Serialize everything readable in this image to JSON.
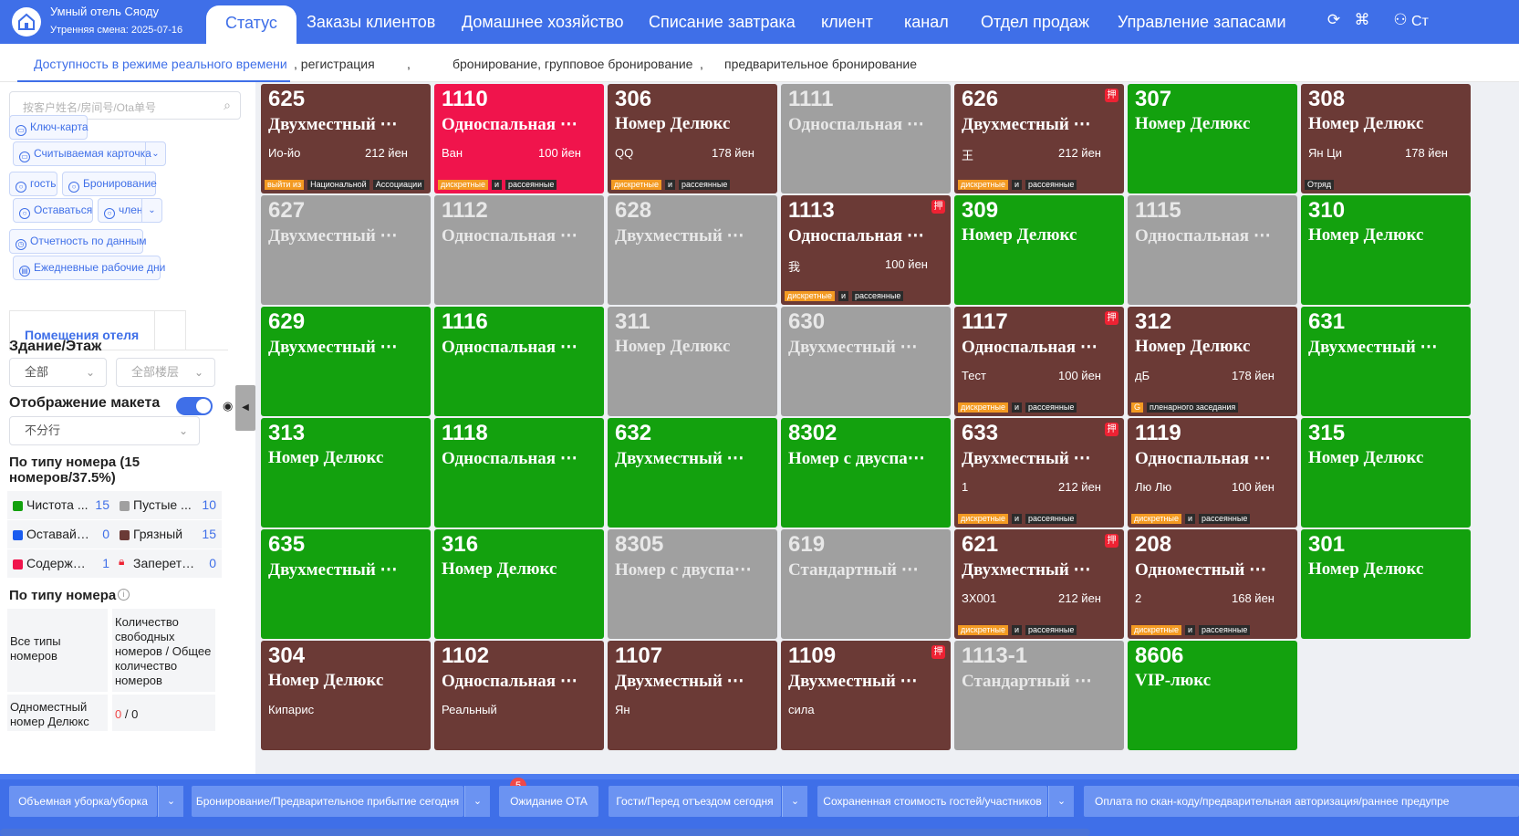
{
  "header": {
    "hotel_name": "Умный отель Сяоду",
    "shift": "Утренняя смена: 2025-07-16",
    "tabs": [
      "Статус",
      "Заказы клиентов",
      "Домашнее хозяйство",
      "Списание завтрака",
      "клиент",
      "канал",
      "Отдел продаж",
      "Управление запасами"
    ],
    "user_label": "Ст"
  },
  "subtabs": [
    "Доступность в режиме реального времени",
    ", регистрация",
    ",",
    "бронирование, групповое бронирование",
    ",",
    "предварительное бронирование"
  ],
  "sidebar": {
    "search_placeholder": "按客户姓名/房间号/Ota单号",
    "chips": [
      "Ключ-карта",
      "Считываемая карточка",
      "гость",
      "Бронирование",
      "Оставаться",
      "член",
      "Отчетность по данным",
      "Ежедневные рабочие дни"
    ],
    "hotel_tab": "Помещения отеля",
    "building_label": "Здание/Этаж",
    "building_value": "全部",
    "floor_value": "全部楼层",
    "layout_label": "Отображение макета",
    "layout_value": "不分行",
    "by_type_label": "По типу номера (15 номеров/37.5%)",
    "stats": [
      {
        "name": "Чистота ...",
        "count": "15",
        "color": "#13a10e"
      },
      {
        "name": "Пустые ...",
        "count": "10",
        "color": "#a0a0a0"
      },
      {
        "name": "Оставайт...",
        "count": "0",
        "color": "#1a5cf0"
      },
      {
        "name": "Грязный",
        "count": "15",
        "color": "#6b3a36"
      },
      {
        "name": "Содержа...",
        "count": "1",
        "color": "#f0144c"
      },
      {
        "name": "Запереть ...",
        "count": "0",
        "color": "#e23"
      }
    ],
    "by_type_label2": "По типу номера",
    "table_h1": "Все типы номеров",
    "table_h2": "Количество свободных номеров / Общее количество номеров",
    "table_r1": "Одноместный номер Делюкс",
    "table_r1_free": "0",
    "table_r1_total": " / 0"
  },
  "rooms": [
    {
      "num": "625",
      "type": "Двухместный ⋯",
      "guest": "Ио-йо",
      "price": "212 йен",
      "color": "#6b3a36",
      "tags": [
        [
          "выйти из",
          1
        ],
        [
          "Национальной",
          0
        ],
        [
          "Ассоциации",
          0
        ]
      ]
    },
    {
      "num": "1110",
      "type": "Односпальная ⋯",
      "guest": "Ван",
      "price": "100 йен",
      "color": "#f0144c",
      "tags": [
        [
          "дискретные",
          1
        ],
        [
          "и",
          0
        ],
        [
          "рассеянные",
          0
        ]
      ]
    },
    {
      "num": "306",
      "type": "Номер Делюкс",
      "guest": "QQ",
      "price": "178 йен",
      "color": "#6b3a36",
      "tags": [
        [
          "дискретные",
          1
        ],
        [
          "и",
          0
        ],
        [
          "рассеянные",
          0
        ]
      ]
    },
    {
      "num": "1111",
      "type": "Односпальная ⋯",
      "guest": "",
      "price": "",
      "color": "#a0a0a0",
      "tags": []
    },
    {
      "num": "626",
      "type": "Двухместный ⋯",
      "guest": "王",
      "price": "212 йен",
      "color": "#6b3a36",
      "tags": [
        [
          "дискретные",
          1
        ],
        [
          "и",
          0
        ],
        [
          "рассеянные",
          0
        ]
      ],
      "pledge": "押"
    },
    {
      "num": "307",
      "type": "Номер Делюкс",
      "guest": "",
      "price": "",
      "color": "#13a10e",
      "tags": []
    },
    {
      "num": "308",
      "type": "Номер Делюкс",
      "guest": "Ян Ци",
      "price": "178 йен",
      "color": "#6b3a36",
      "tags": [
        [
          "Отряд",
          0
        ]
      ]
    },
    {
      "num": "627",
      "type": "Двухместный ⋯",
      "guest": "",
      "price": "",
      "color": "#a0a0a0",
      "tags": []
    },
    {
      "num": "1112",
      "type": "Односпальная ⋯",
      "guest": "",
      "price": "",
      "color": "#a0a0a0",
      "tags": []
    },
    {
      "num": "628",
      "type": "Двухместный ⋯",
      "guest": "",
      "price": "",
      "color": "#a0a0a0",
      "tags": []
    },
    {
      "num": "1113",
      "type": "Односпальная ⋯",
      "guest": "我",
      "price": "100 йен",
      "color": "#6b3a36",
      "tags": [
        [
          "дискретные",
          1
        ],
        [
          "и",
          0
        ],
        [
          "рассеянные",
          0
        ]
      ],
      "pledge": "押"
    },
    {
      "num": "309",
      "type": "Номер Делюкс",
      "guest": "",
      "price": "",
      "color": "#13a10e",
      "tags": []
    },
    {
      "num": "1115",
      "type": "Односпальная ⋯",
      "guest": "",
      "price": "",
      "color": "#a0a0a0",
      "tags": []
    },
    {
      "num": "310",
      "type": "Номер Делюкс",
      "guest": "",
      "price": "",
      "color": "#13a10e",
      "tags": []
    },
    {
      "num": "629",
      "type": "Двухместный ⋯",
      "guest": "",
      "price": "",
      "color": "#13a10e",
      "tags": []
    },
    {
      "num": "1116",
      "type": "Односпальная ⋯",
      "guest": "",
      "price": "",
      "color": "#13a10e",
      "tags": []
    },
    {
      "num": "311",
      "type": "Номер Делюкс",
      "guest": "",
      "price": "",
      "color": "#a0a0a0",
      "tags": []
    },
    {
      "num": "630",
      "type": "Двухместный ⋯",
      "guest": "",
      "price": "",
      "color": "#a0a0a0",
      "tags": []
    },
    {
      "num": "1117",
      "type": "Односпальная ⋯",
      "guest": "Тест",
      "price": "100 йен",
      "color": "#6b3a36",
      "tags": [
        [
          "дискретные",
          1
        ],
        [
          "и",
          0
        ],
        [
          "рассеянные",
          0
        ]
      ],
      "pledge": "押"
    },
    {
      "num": "312",
      "type": "Номер Делюкс",
      "guest": "дБ",
      "price": "178 йен",
      "color": "#6b3a36",
      "tags": [
        [
          "G",
          1
        ],
        [
          "пленарного заседания",
          0
        ]
      ]
    },
    {
      "num": "631",
      "type": "Двухместный ⋯",
      "guest": "",
      "price": "",
      "color": "#13a10e",
      "tags": []
    },
    {
      "num": "313",
      "type": "Номер Делюкс",
      "guest": "",
      "price": "",
      "color": "#13a10e",
      "tags": []
    },
    {
      "num": "1118",
      "type": "Односпальная ⋯",
      "guest": "",
      "price": "",
      "color": "#13a10e",
      "tags": []
    },
    {
      "num": "632",
      "type": "Двухместный ⋯",
      "guest": "",
      "price": "",
      "color": "#13a10e",
      "tags": []
    },
    {
      "num": "8302",
      "type": "Номер с двуспа⋯",
      "guest": "",
      "price": "",
      "color": "#13a10e",
      "tags": []
    },
    {
      "num": "633",
      "type": "Двухместный ⋯",
      "guest": "1",
      "price": "212 йен",
      "color": "#6b3a36",
      "tags": [
        [
          "дискретные",
          1
        ],
        [
          "и",
          0
        ],
        [
          "рассеянные",
          0
        ]
      ],
      "pledge": "押"
    },
    {
      "num": "1119",
      "type": "Односпальная ⋯",
      "guest": "Лю Лю",
      "price": "100 йен",
      "color": "#6b3a36",
      "tags": [
        [
          "дискретные",
          1
        ],
        [
          "и",
          0
        ],
        [
          "рассеянные",
          0
        ]
      ]
    },
    {
      "num": "315",
      "type": "Номер Делюкс",
      "guest": "",
      "price": "",
      "color": "#13a10e",
      "tags": []
    },
    {
      "num": "635",
      "type": "Двухместный ⋯",
      "guest": "",
      "price": "",
      "color": "#13a10e",
      "tags": []
    },
    {
      "num": "316",
      "type": "Номер Делюкс",
      "guest": "",
      "price": "",
      "color": "#13a10e",
      "tags": []
    },
    {
      "num": "8305",
      "type": "Номер с двуспа⋯",
      "guest": "",
      "price": "",
      "color": "#a0a0a0",
      "tags": []
    },
    {
      "num": "619",
      "type": "Стандартный ⋯",
      "guest": "",
      "price": "",
      "color": "#a0a0a0",
      "tags": []
    },
    {
      "num": "621",
      "type": "Двухместный ⋯",
      "guest": "ЗХ001",
      "price": "212 йен",
      "color": "#6b3a36",
      "tags": [
        [
          "дискретные",
          1
        ],
        [
          "и",
          0
        ],
        [
          "рассеянные",
          0
        ]
      ],
      "pledge": "押"
    },
    {
      "num": "208",
      "type": "Одноместный ⋯",
      "guest": "2",
      "price": "168 йен",
      "color": "#6b3a36",
      "tags": [
        [
          "дискретные",
          1
        ],
        [
          "и",
          0
        ],
        [
          "рассеянные",
          0
        ]
      ]
    },
    {
      "num": "301",
      "type": "Номер Делюкс",
      "guest": "",
      "price": "",
      "color": "#13a10e",
      "tags": []
    },
    {
      "num": "304",
      "type": "Номер Делюкс",
      "guest": "Кипарис",
      "price": "",
      "color": "#6b3a36",
      "tags": []
    },
    {
      "num": "1102",
      "type": "Односпальная ⋯",
      "guest": "Реальный",
      "price": "",
      "color": "#6b3a36",
      "tags": []
    },
    {
      "num": "1107",
      "type": "Двухместный ⋯",
      "guest": "Ян",
      "price": "",
      "color": "#6b3a36",
      "tags": []
    },
    {
      "num": "1109",
      "type": "Двухместный ⋯",
      "guest": "сила",
      "price": "",
      "color": "#6b3a36",
      "tags": [],
      "pledge": "押"
    },
    {
      "num": "1113-1",
      "type": "Стандартный ⋯",
      "guest": "",
      "price": "",
      "color": "#a0a0a0",
      "tags": []
    },
    {
      "num": "8606",
      "type": "VIP-люкс",
      "guest": "",
      "price": "",
      "color": "#13a10e",
      "tags": []
    }
  ],
  "bottom": {
    "buttons": [
      "Объемная уборка/уборка",
      "Бронирование/Предварительное прибытие сегодня",
      "Ожидание OTA",
      "Гости/Перед отъездом сегодня",
      "Сохраненная стоимость гостей/участников",
      "Оплата по скан-коду/предварительная авторизация/раннее предупре"
    ],
    "badge": "5"
  }
}
